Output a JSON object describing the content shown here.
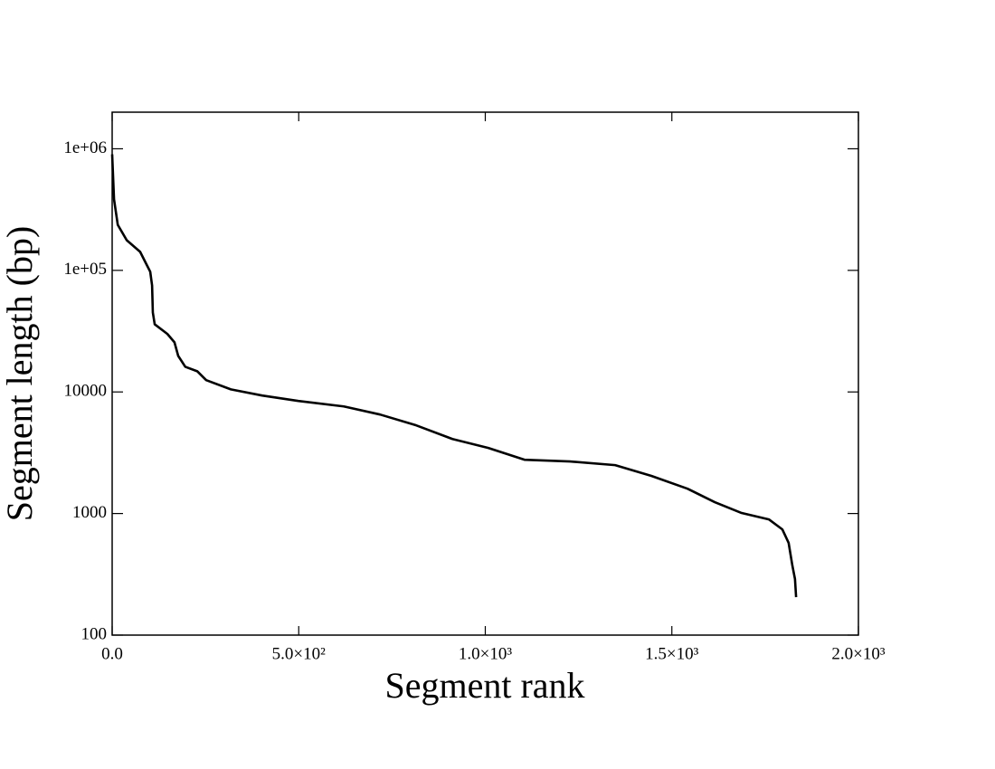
{
  "chart_data": {
    "type": "line",
    "xlabel": "Segment rank",
    "ylabel": "Segment length (bp)",
    "log_y": true,
    "color": "#000000",
    "x": [
      0,
      5,
      15,
      39,
      75,
      92,
      102,
      107,
      109,
      114,
      148,
      167,
      177,
      196,
      228,
      252,
      318,
      402,
      499,
      621,
      718,
      815,
      912,
      1008,
      1105,
      1227,
      1348,
      1445,
      1542,
      1615,
      1687,
      1760,
      1796,
      1813,
      1823,
      1830,
      1833
    ],
    "values": [
      900000,
      384000,
      237000,
      177000,
      142000,
      112000,
      97500,
      75000,
      45000,
      36000,
      30000,
      25600,
      19800,
      16100,
      14800,
      12500,
      10500,
      9340,
      8430,
      7600,
      6520,
      5310,
      4100,
      3460,
      2770,
      2680,
      2500,
      2040,
      1600,
      1240,
      1010,
      895,
      741,
      573,
      373,
      289,
      205
    ],
    "xlim": [
      0,
      2000
    ],
    "xticks": [
      {
        "value": 0,
        "label": "0.0"
      },
      {
        "value": 500,
        "label": "5.0×10²"
      },
      {
        "value": 1000,
        "label": "1.0×10³"
      },
      {
        "value": 1500,
        "label": "1.5×10³"
      },
      {
        "value": 2000,
        "label": "2.0×10³"
      }
    ],
    "ylim": [
      100,
      2000000
    ],
    "yticks": [
      100,
      1000,
      10000,
      {
        "value": 100000,
        "label": "1e+05"
      },
      {
        "value": 1000000,
        "label": "1e+06"
      }
    ]
  }
}
